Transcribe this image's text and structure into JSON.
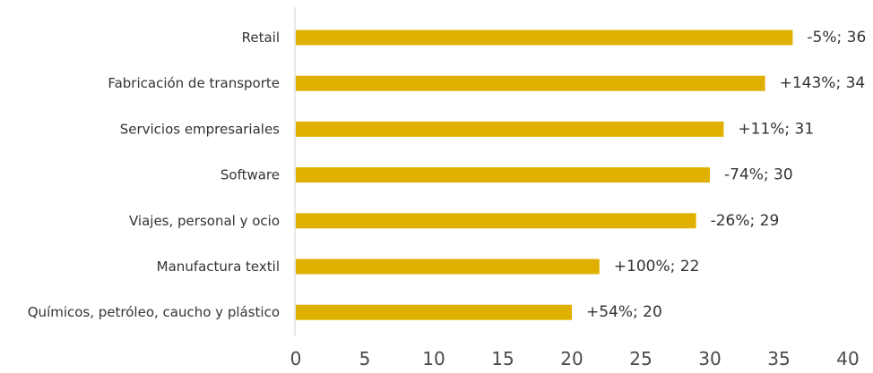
{
  "chart_data": {
    "type": "bar",
    "orientation": "horizontal",
    "categories": [
      "Retail",
      "Fabricación de transporte",
      "Servicios empresariales",
      "Software ",
      "Viajes, personal y ocio",
      "Manufactura textil",
      "Químicos, petróleo, caucho y plástico"
    ],
    "values": [
      36,
      34,
      31,
      30,
      29,
      22,
      20
    ],
    "data_labels": [
      "-5%; 36",
      "+143%; 34",
      "+11%; 31",
      "-74%; 30",
      "-26%; 29",
      "+100%; 22",
      "+54%; 20"
    ],
    "xlim": [
      0,
      40
    ],
    "x_ticks": [
      "0",
      "5",
      "10",
      "15",
      "20",
      "25",
      "30",
      "35",
      "40"
    ],
    "bar_color": "#E0B000",
    "grid": false,
    "legend": "none"
  }
}
